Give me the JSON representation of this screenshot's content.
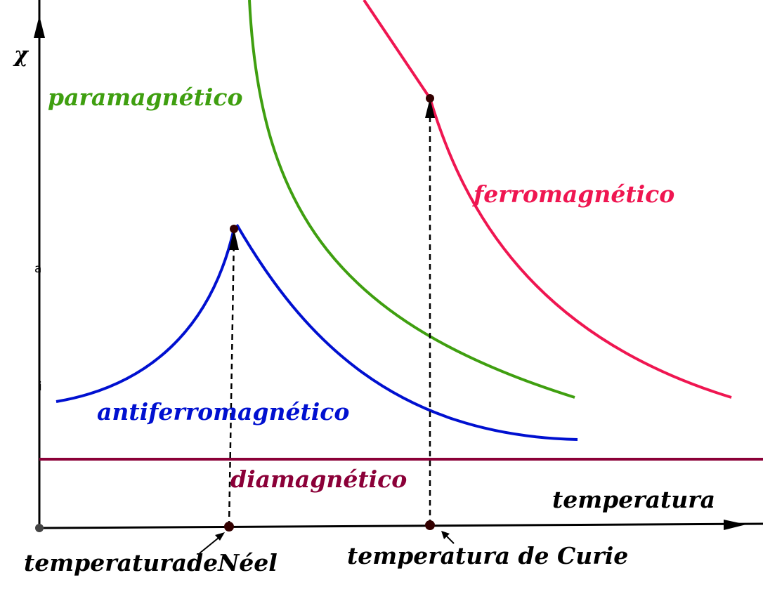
{
  "chart_data": {
    "type": "line",
    "xlabel": "temperatura",
    "ylabel": "χ",
    "y_tick_labels": [
      "a",
      "i"
    ],
    "grid": false,
    "x_range": [
      0,
      10
    ],
    "y_range": [
      0,
      10
    ],
    "series": [
      {
        "name": "paramagnético",
        "color": "#3f9f10",
        "points": [
          [
            2.8,
            10.0
          ],
          [
            3.0,
            8.0
          ],
          [
            4.0,
            5.5
          ],
          [
            5.0,
            3.8
          ],
          [
            6.0,
            2.6
          ],
          [
            7.0,
            2.0
          ],
          [
            7.3,
            1.9
          ]
        ]
      },
      {
        "name": "ferromagnético",
        "color": "#ef1651",
        "points": [
          [
            4.3,
            10.0
          ],
          [
            5.1,
            7.5
          ],
          [
            5.6,
            6.2
          ],
          [
            6.5,
            4.4
          ],
          [
            7.5,
            3.1
          ],
          [
            8.5,
            2.3
          ],
          [
            9.4,
            1.9
          ]
        ]
      },
      {
        "name": "antiferromagnético",
        "color": "#0010d0",
        "points": [
          [
            0.2,
            1.8
          ],
          [
            1.0,
            2.2
          ],
          [
            1.8,
            3.0
          ],
          [
            2.5,
            4.2
          ],
          [
            2.6,
            4.3
          ],
          [
            3.2,
            3.6
          ],
          [
            4.0,
            2.8
          ],
          [
            5.0,
            2.0
          ],
          [
            6.0,
            1.5
          ],
          [
            7.3,
            1.3
          ]
        ]
      },
      {
        "name": "diamagnético",
        "color": "#8b0038",
        "points": [
          [
            0.0,
            1.0
          ],
          [
            10.0,
            1.0
          ]
        ]
      }
    ],
    "markers": [
      {
        "name": "temperaturadeNéel",
        "x": 2.6,
        "y": 4.3
      },
      {
        "name": "temperatura de Curie",
        "x": 5.6,
        "y": 6.2
      }
    ]
  }
}
